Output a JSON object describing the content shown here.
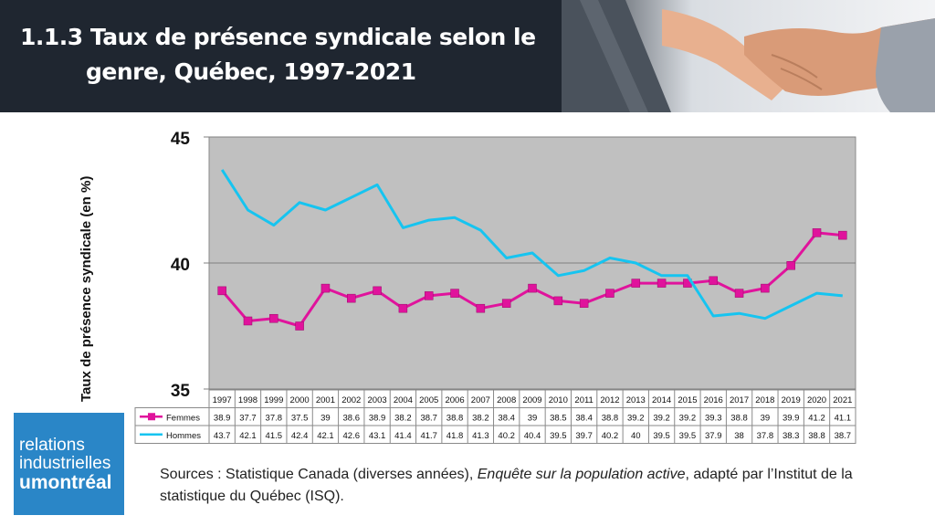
{
  "header": {
    "title_line1": "1.1.3 Taux de présence syndicale selon le",
    "title_line2": "genre, Québec, 1997-2021",
    "photo_icon": "handshake-photo"
  },
  "chart_data": {
    "type": "line",
    "title": "Taux de présence syndicale selon le genre, Québec, 1997-2021",
    "xlabel": "",
    "ylabel": "Taux de présence syndicale (en %)",
    "ylim": [
      35,
      45
    ],
    "yticks": [
      "35",
      "40",
      "45"
    ],
    "grid": true,
    "categories": [
      "1997",
      "1998",
      "1999",
      "2000",
      "2001",
      "2002",
      "2003",
      "2004",
      "2005",
      "2006",
      "2007",
      "2008",
      "2009",
      "2010",
      "2011",
      "2012",
      "2013",
      "2014",
      "2015",
      "2016",
      "2017",
      "2018",
      "2019",
      "2020",
      "2021"
    ],
    "series": [
      {
        "name": "Femmes",
        "color": "#e0139c",
        "marker": "square",
        "values": [
          38.9,
          37.7,
          37.8,
          37.5,
          39,
          38.6,
          38.9,
          38.2,
          38.7,
          38.8,
          38.2,
          38.4,
          39,
          38.5,
          38.4,
          38.8,
          39.2,
          39.2,
          39.2,
          39.3,
          38.8,
          39,
          39.9,
          41.2,
          41.1
        ],
        "labels": [
          "38.9",
          "37.7",
          "37.8",
          "37.5",
          "39",
          "38.6",
          "38.9",
          "38.2",
          "38.7",
          "38.8",
          "38.2",
          "38.4",
          "39",
          "38.5",
          "38.4",
          "38.8",
          "39.2",
          "39.2",
          "39.2",
          "39.3",
          "38.8",
          "39",
          "39.9",
          "41.2",
          "41.1"
        ]
      },
      {
        "name": "Hommes",
        "color": "#16c4f0",
        "marker": "none",
        "values": [
          43.7,
          42.1,
          41.5,
          42.4,
          42.1,
          42.6,
          43.1,
          41.4,
          41.7,
          41.8,
          41.3,
          40.2,
          40.4,
          39.5,
          39.7,
          40.2,
          40,
          39.5,
          39.5,
          37.9,
          38,
          37.8,
          38.3,
          38.8,
          38.7
        ],
        "labels": [
          "43.7",
          "42.1",
          "41.5",
          "42.4",
          "42.1",
          "42.6",
          "43.1",
          "41.4",
          "41.7",
          "41.8",
          "41.3",
          "40.2",
          "40.4",
          "39.5",
          "39.7",
          "40.2",
          "40",
          "39.5",
          "39.5",
          "37.9",
          "38",
          "37.8",
          "38.3",
          "38.8",
          "38.7"
        ]
      }
    ]
  },
  "logo": {
    "line1": "relations",
    "line2": "industrielles",
    "line3": "umontréal"
  },
  "sources": {
    "prefix": "Sources : Statistique Canada (diverses années), ",
    "italic": "Enquête sur la population active",
    "suffix": ", adapté par l’Institut de la statistique du Québec (ISQ)."
  }
}
